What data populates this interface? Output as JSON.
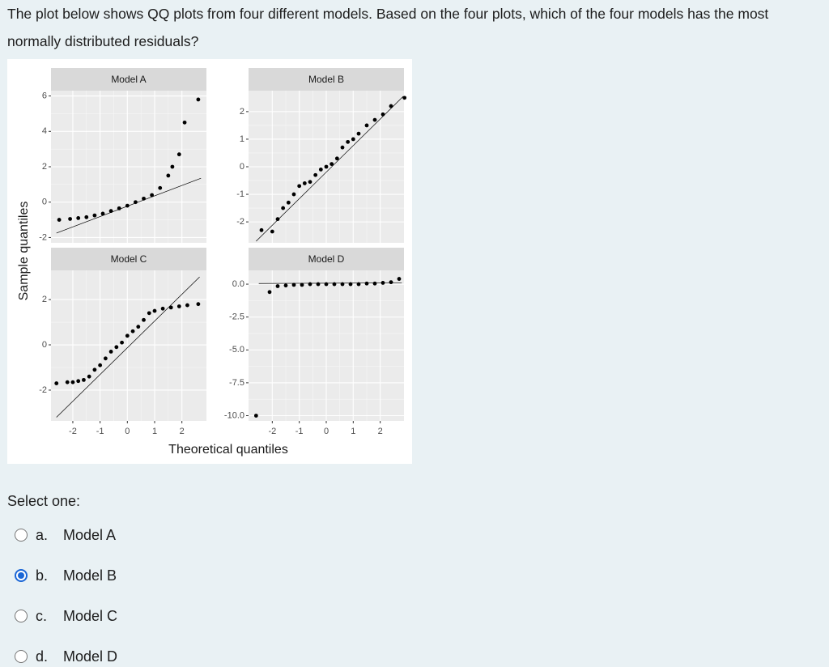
{
  "question": "The plot below shows QQ plots from four different models. Based on the four plots, which of the four models has the most normally distributed residuals?",
  "figure": {
    "xlabel": "Theoretical quantiles",
    "ylabel": "Sample quantiles"
  },
  "chart_data": [
    {
      "type": "scatter",
      "title": "Model A",
      "color": "#000000",
      "x": [
        -2.5,
        -2.1,
        -1.8,
        -1.5,
        -1.2,
        -0.9,
        -0.6,
        -0.3,
        0,
        0.3,
        0.6,
        0.9,
        1.2,
        1.5,
        1.65,
        1.9,
        2.1,
        2.6
      ],
      "values": [
        -1.0,
        -0.95,
        -0.9,
        -0.85,
        -0.75,
        -0.65,
        -0.5,
        -0.35,
        -0.2,
        0,
        0.2,
        0.4,
        0.8,
        1.5,
        2.0,
        2.7,
        4.5,
        5.8
      ],
      "reference_line": {
        "x": [
          -2.6,
          2.7
        ],
        "y": [
          -1.75,
          1.35
        ]
      },
      "xlim": [
        -2.8,
        2.9
      ],
      "ylim": [
        -2.3,
        6.3
      ],
      "xticks": [
        -2,
        -1,
        0,
        1,
        2
      ],
      "yticks": [
        -2,
        0,
        2,
        4,
        6
      ],
      "grid": true
    },
    {
      "type": "scatter",
      "title": "Model B",
      "color": "#000000",
      "x": [
        -2.4,
        -2.0,
        -1.8,
        -1.6,
        -1.4,
        -1.2,
        -1.0,
        -0.8,
        -0.6,
        -0.4,
        -0.2,
        0,
        0.2,
        0.4,
        0.6,
        0.8,
        1.0,
        1.2,
        1.5,
        1.8,
        2.1,
        2.4,
        2.9
      ],
      "values": [
        -2.3,
        -2.35,
        -1.9,
        -1.5,
        -1.3,
        -1.0,
        -0.7,
        -0.6,
        -0.55,
        -0.3,
        -0.1,
        0,
        0.1,
        0.3,
        0.7,
        0.9,
        1.0,
        1.2,
        1.5,
        1.7,
        1.9,
        2.2,
        2.5
      ],
      "reference_line": {
        "x": [
          -2.6,
          2.85
        ],
        "y": [
          -2.7,
          2.55
        ]
      },
      "xlim": [
        -2.88,
        2.88
      ],
      "ylim": [
        -2.76,
        2.76
      ],
      "xticks": [
        -2,
        -1,
        0,
        1,
        2
      ],
      "yticks": [
        -2,
        -1,
        0,
        1,
        2
      ],
      "grid": true
    },
    {
      "type": "scatter",
      "title": "Model C",
      "color": "#000000",
      "x": [
        -2.6,
        -2.2,
        -2.0,
        -1.8,
        -1.6,
        -1.4,
        -1.2,
        -1.0,
        -0.8,
        -0.6,
        -0.4,
        -0.2,
        0,
        0.2,
        0.4,
        0.6,
        0.8,
        1.0,
        1.3,
        1.6,
        1.9,
        2.2,
        2.6
      ],
      "values": [
        -1.7,
        -1.65,
        -1.65,
        -1.6,
        -1.55,
        -1.4,
        -1.1,
        -0.9,
        -0.6,
        -0.3,
        -0.1,
        0.1,
        0.4,
        0.6,
        0.8,
        1.1,
        1.4,
        1.5,
        1.6,
        1.65,
        1.7,
        1.75,
        1.8
      ],
      "reference_line": {
        "x": [
          -2.6,
          2.65
        ],
        "y": [
          -3.2,
          3.0
        ]
      },
      "xlim": [
        -2.8,
        2.9
      ],
      "ylim": [
        -3.36,
        3.29
      ],
      "xticks": [
        -2,
        -1,
        0,
        1,
        2
      ],
      "yticks": [
        -2,
        0,
        2
      ],
      "grid": true
    },
    {
      "type": "scatter",
      "title": "Model D",
      "color": "#000000",
      "x": [
        -2.6,
        -2.1,
        -1.8,
        -1.5,
        -1.2,
        -0.9,
        -0.6,
        -0.3,
        0,
        0.3,
        0.6,
        0.9,
        1.2,
        1.5,
        1.8,
        2.1,
        2.4,
        2.7
      ],
      "values": [
        -10.0,
        -0.6,
        -0.15,
        -0.1,
        -0.05,
        -0.05,
        0,
        0,
        0,
        0,
        0,
        0,
        0,
        0.05,
        0.05,
        0.1,
        0.15,
        0.4
      ],
      "reference_line": {
        "x": [
          -2.5,
          2.8
        ],
        "y": [
          0.05,
          0.1
        ]
      },
      "xlim": [
        -2.88,
        2.88
      ],
      "ylim": [
        -10.4,
        1.05
      ],
      "xticks": [
        -2,
        -1,
        0,
        1,
        2
      ],
      "yticks": [
        {
          "value": -10,
          "label": "-10.0"
        },
        {
          "value": -7.5,
          "label": "-7.5"
        },
        {
          "value": -5,
          "label": "-5.0"
        },
        {
          "value": -2.5,
          "label": "-2.5"
        },
        {
          "value": 0,
          "label": "0.0"
        }
      ],
      "grid": true
    }
  ],
  "prompt": "Select one:",
  "options": [
    {
      "letter": "a.",
      "label": "Model A",
      "selected": false
    },
    {
      "letter": "b.",
      "label": "Model B",
      "selected": true
    },
    {
      "letter": "c.",
      "label": "Model C",
      "selected": false
    },
    {
      "letter": "d.",
      "label": "Model D",
      "selected": false
    }
  ]
}
